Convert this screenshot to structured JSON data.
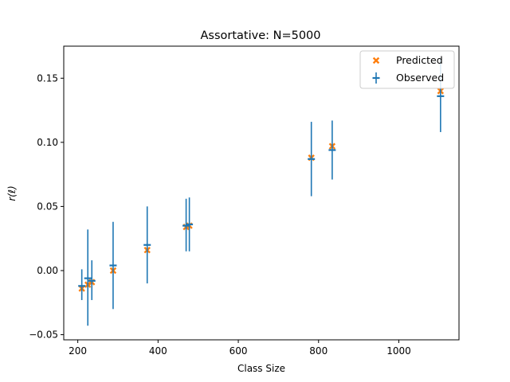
{
  "chart_data": {
    "type": "scatter",
    "title": "Assortative: N=5000",
    "xlabel": "Class Size",
    "ylabel": "r(ℓ)",
    "xlim": [
      165,
      1150
    ],
    "ylim": [
      -0.054,
      0.175
    ],
    "xticks": [
      200,
      400,
      600,
      800,
      1000
    ],
    "yticks": [
      -0.05,
      0.0,
      0.05,
      0.1,
      0.15
    ],
    "ytick_labels": [
      "−0.05",
      "0.00",
      "0.05",
      "0.10",
      "0.15"
    ],
    "grid": false,
    "legend_position": "top-right",
    "series": [
      {
        "name": "Predicted",
        "marker": "X",
        "color": "#ff7f0e",
        "points": [
          {
            "x": 210,
            "y": -0.014
          },
          {
            "x": 225,
            "y": -0.011
          },
          {
            "x": 235,
            "y": -0.009
          },
          {
            "x": 288,
            "y": 0.0
          },
          {
            "x": 373,
            "y": 0.016
          },
          {
            "x": 470,
            "y": 0.034
          },
          {
            "x": 478,
            "y": 0.035
          },
          {
            "x": 782,
            "y": 0.088
          },
          {
            "x": 834,
            "y": 0.097
          },
          {
            "x": 1104,
            "y": 0.14
          }
        ]
      },
      {
        "name": "Observed",
        "marker": "errorbar",
        "color": "#1f77b4",
        "points": [
          {
            "x": 210,
            "y": -0.012,
            "ylo": -0.023,
            "yhi": 0.001
          },
          {
            "x": 225,
            "y": -0.006,
            "ylo": -0.043,
            "yhi": 0.032
          },
          {
            "x": 235,
            "y": -0.008,
            "ylo": -0.023,
            "yhi": 0.008
          },
          {
            "x": 288,
            "y": 0.004,
            "ylo": -0.03,
            "yhi": 0.038
          },
          {
            "x": 373,
            "y": 0.02,
            "ylo": -0.01,
            "yhi": 0.05
          },
          {
            "x": 470,
            "y": 0.035,
            "ylo": 0.015,
            "yhi": 0.056
          },
          {
            "x": 478,
            "y": 0.036,
            "ylo": 0.015,
            "yhi": 0.057
          },
          {
            "x": 782,
            "y": 0.087,
            "ylo": 0.058,
            "yhi": 0.116
          },
          {
            "x": 834,
            "y": 0.094,
            "ylo": 0.071,
            "yhi": 0.117
          },
          {
            "x": 1104,
            "y": 0.136,
            "ylo": 0.108,
            "yhi": 0.165
          }
        ]
      }
    ]
  }
}
